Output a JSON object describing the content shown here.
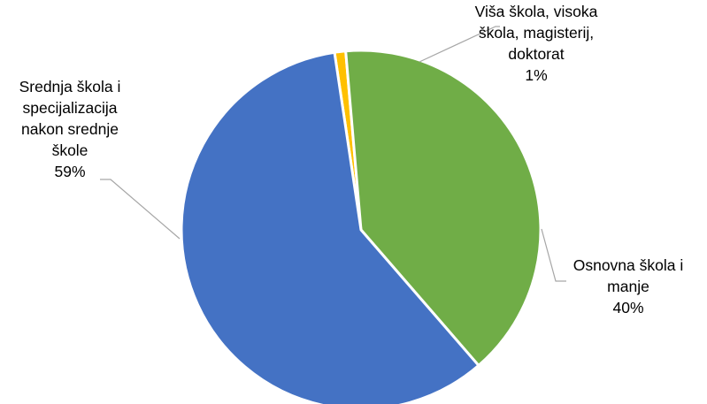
{
  "chart_data": {
    "type": "pie",
    "title": "",
    "slices": [
      {
        "name": "Viša škola, visoka škola, magisterij, doktorat",
        "value": 1,
        "color": "#FFC000",
        "label_lines": [
          "Viša škola, visoka",
          "škola, magisterij,",
          "doktorat",
          "1%"
        ]
      },
      {
        "name": "Osnovna škola i manje",
        "value": 40,
        "color": "#70AD47",
        "label_lines": [
          "Osnovna škola i",
          "manje",
          "40%"
        ]
      },
      {
        "name": "Srednja škola i specijalizacija nakon srednje škole",
        "value": 59,
        "color": "#4472C4",
        "label_lines": [
          "Srednja škola i",
          "specijalizacija",
          "nakon srednje",
          "škole",
          "59%"
        ]
      }
    ]
  }
}
